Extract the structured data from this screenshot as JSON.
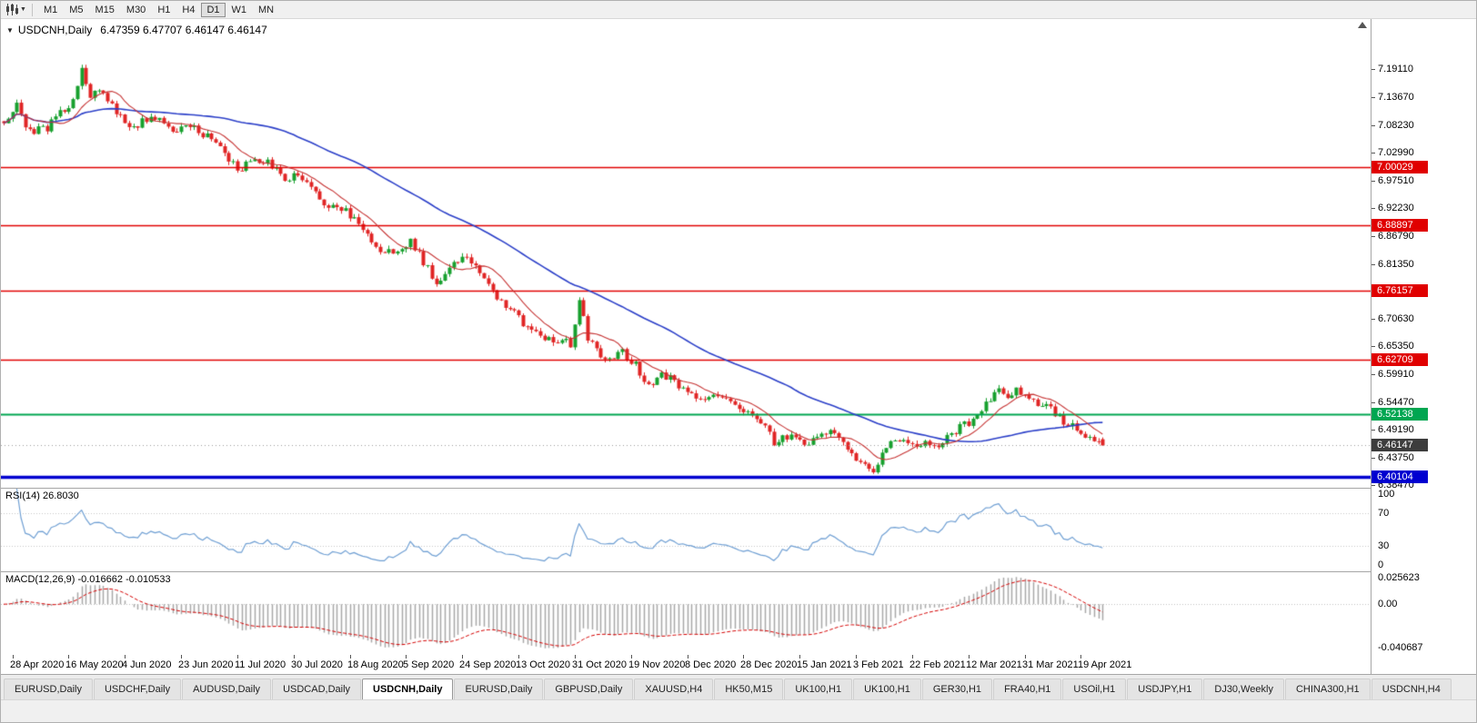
{
  "toolbar": {
    "timeframes": [
      {
        "label": "M1",
        "active": false
      },
      {
        "label": "M5",
        "active": false
      },
      {
        "label": "M15",
        "active": false
      },
      {
        "label": "M30",
        "active": false
      },
      {
        "label": "H1",
        "active": false
      },
      {
        "label": "H4",
        "active": false
      },
      {
        "label": "D1",
        "active": true
      },
      {
        "label": "W1",
        "active": false
      },
      {
        "label": "MN",
        "active": false
      }
    ]
  },
  "chart": {
    "info_prefix": "USDCNH,Daily",
    "info_ohlc": "6.47359 6.47707 6.46147 6.46147"
  },
  "price_axis": {
    "ticks": [
      "7.19110",
      "7.13670",
      "7.08230",
      "7.02990",
      "6.97510",
      "6.92230",
      "6.86790",
      "6.81350",
      "6.76070",
      "6.70630",
      "6.65350",
      "6.59910",
      "6.54470",
      "6.49190",
      "6.43750",
      "6.38470"
    ],
    "badges": [
      {
        "text": "7.00029",
        "price": 7.00029,
        "color": "#e00000"
      },
      {
        "text": "6.88897",
        "price": 6.88897,
        "color": "#e00000"
      },
      {
        "text": "6.76157",
        "price": 6.76157,
        "color": "#e00000"
      },
      {
        "text": "6.62709",
        "price": 6.62709,
        "color": "#e00000"
      },
      {
        "text": "6.52138",
        "price": 6.52138,
        "color": "#00a651"
      },
      {
        "text": "6.46147",
        "price": 6.46147,
        "color": "#3d3d3d"
      },
      {
        "text": "6.40104",
        "price": 6.40104,
        "color": "#0000d0"
      }
    ]
  },
  "rsi": {
    "label": "RSI(14) 26.8030",
    "value": "26.8030",
    "period": 14,
    "axis_labels": [
      "100",
      "70",
      "30",
      "0"
    ],
    "level_lines": [
      70,
      30
    ],
    "line_color": "#6f9fd3"
  },
  "macd": {
    "label": "MACD(12,26,9) -0.016662 -0.010533",
    "main_value": "-0.016662",
    "signal_value": "-0.010533",
    "fast": 12,
    "slow": 26,
    "signal": 9,
    "axis_top": "0.025623",
    "axis_zero": "0.00",
    "axis_bottom": "-0.040687",
    "bar_color": "#a8a8a8",
    "signal_color": "#d40000"
  },
  "time_axis": {
    "dates": [
      "28 Apr 2020",
      "16 May 2020",
      "4 Jun 2020",
      "23 Jun 2020",
      "11 Jul 2020",
      "30 Jul 2020",
      "18 Aug 2020",
      "5 Sep 2020",
      "24 Sep 2020",
      "13 Oct 2020",
      "31 Oct 2020",
      "19 Nov 2020",
      "8 Dec 2020",
      "28 Dec 2020",
      "15 Jan 2021",
      "3 Feb 2021",
      "22 Feb 2021",
      "12 Mar 2021",
      "31 Mar 2021",
      "19 Apr 2021"
    ],
    "first_label_candle": 2,
    "candles_per_label": 13
  },
  "tabs": [
    {
      "label": "EURUSD,Daily",
      "active": false
    },
    {
      "label": "USDCHF,Daily",
      "active": false
    },
    {
      "label": "AUDUSD,Daily",
      "active": false
    },
    {
      "label": "USDCAD,Daily",
      "active": false
    },
    {
      "label": "USDCNH,Daily",
      "active": true
    },
    {
      "label": "EURUSD,Daily",
      "active": false
    },
    {
      "label": "GBPUSD,Daily",
      "active": false
    },
    {
      "label": "XAUUSD,H4",
      "active": false
    },
    {
      "label": "HK50,M15",
      "active": false
    },
    {
      "label": "UK100,H1",
      "active": false
    },
    {
      "label": "UK100,H1",
      "active": false
    },
    {
      "label": "GER30,H1",
      "active": false
    },
    {
      "label": "FRA40,H1",
      "active": false
    },
    {
      "label": "USOil,H1",
      "active": false
    },
    {
      "label": "USDJPY,H1",
      "active": false
    },
    {
      "label": "DJ30,Weekly",
      "active": false
    },
    {
      "label": "CHINA300,H1",
      "active": false
    },
    {
      "label": "USDCNH,H4",
      "active": false
    }
  ],
  "chart_data": {
    "type": "candlestick",
    "symbol": "USDCNH",
    "period": "Daily",
    "title": "USDCNH,Daily",
    "num_candles": 255,
    "bar_spacing_px": 4.757,
    "seed": 42,
    "noise": 0.008,
    "wick": 0.007,
    "price_range": [
      6.3795,
      7.288
    ],
    "last_candle": [
      6.47359,
      6.47707,
      6.46147,
      6.46147
    ],
    "current_price": 6.46147,
    "up_color": "#17a02e",
    "down_color": "#e02525",
    "anchors": [
      [
        0,
        7.09
      ],
      [
        3,
        7.118
      ],
      [
        6,
        7.068
      ],
      [
        10,
        7.078
      ],
      [
        13,
        7.108
      ],
      [
        16,
        7.128
      ],
      [
        18,
        7.196
      ],
      [
        20,
        7.138
      ],
      [
        23,
        7.148
      ],
      [
        26,
        7.108
      ],
      [
        29,
        7.078
      ],
      [
        32,
        7.088
      ],
      [
        36,
        7.098
      ],
      [
        39,
        7.068
      ],
      [
        43,
        7.078
      ],
      [
        47,
        7.062
      ],
      [
        50,
        7.038
      ],
      [
        52,
        7.008
      ],
      [
        55,
        6.998
      ],
      [
        58,
        7.018
      ],
      [
        61,
        7.008
      ],
      [
        65,
        6.978
      ],
      [
        68,
        6.988
      ],
      [
        71,
        6.958
      ],
      [
        74,
        6.928
      ],
      [
        78,
        6.922
      ],
      [
        81,
        6.898
      ],
      [
        84,
        6.868
      ],
      [
        87,
        6.842
      ],
      [
        91,
        6.832
      ],
      [
        94,
        6.858
      ],
      [
        97,
        6.818
      ],
      [
        100,
        6.778
      ],
      [
        102,
        6.798
      ],
      [
        104,
        6.818
      ],
      [
        107,
        6.828
      ],
      [
        110,
        6.798
      ],
      [
        113,
        6.758
      ],
      [
        117,
        6.728
      ],
      [
        120,
        6.698
      ],
      [
        123,
        6.682
      ],
      [
        127,
        6.658
      ],
      [
        130,
        6.662
      ],
      [
        131,
        6.655
      ],
      [
        133,
        6.748
      ],
      [
        135,
        6.672
      ],
      [
        137,
        6.642
      ],
      [
        140,
        6.626
      ],
      [
        143,
        6.642
      ],
      [
        146,
        6.616
      ],
      [
        149,
        6.578
      ],
      [
        152,
        6.602
      ],
      [
        156,
        6.578
      ],
      [
        159,
        6.556
      ],
      [
        162,
        6.546
      ],
      [
        165,
        6.562
      ],
      [
        169,
        6.542
      ],
      [
        172,
        6.526
      ],
      [
        175,
        6.512
      ],
      [
        178,
        6.466
      ],
      [
        180,
        6.482
      ],
      [
        182,
        6.476
      ],
      [
        185,
        6.462
      ],
      [
        188,
        6.476
      ],
      [
        191,
        6.486
      ],
      [
        194,
        6.472
      ],
      [
        196,
        6.446
      ],
      [
        199,
        6.422
      ],
      [
        201,
        6.412
      ],
      [
        204,
        6.456
      ],
      [
        206,
        6.476
      ],
      [
        208,
        6.466
      ],
      [
        211,
        6.456
      ],
      [
        213,
        6.47
      ],
      [
        216,
        6.462
      ],
      [
        219,
        6.482
      ],
      [
        221,
        6.496
      ],
      [
        224,
        6.512
      ],
      [
        227,
        6.546
      ],
      [
        230,
        6.566
      ],
      [
        232,
        6.556
      ],
      [
        234,
        6.57
      ],
      [
        236,
        6.556
      ],
      [
        239,
        6.542
      ],
      [
        241,
        6.546
      ],
      [
        243,
        6.522
      ],
      [
        245,
        6.506
      ],
      [
        248,
        6.492
      ],
      [
        251,
        6.478
      ],
      [
        254,
        6.46147
      ]
    ],
    "moving_averages": [
      {
        "type": "sma",
        "period": 50,
        "color": "#2b3fc8",
        "width": 1.6
      },
      {
        "type": "sma",
        "period": 10,
        "color": "#c63434",
        "width": 1.1
      }
    ],
    "horizontal_lines": [
      {
        "price": 7.00029,
        "color": "#e00000",
        "width": 1.6
      },
      {
        "price": 6.88897,
        "color": "#e00000",
        "width": 1.6
      },
      {
        "price": 6.76157,
        "color": "#e00000",
        "width": 1.6
      },
      {
        "price": 6.62709,
        "color": "#e00000",
        "width": 1.6
      },
      {
        "price": 6.52138,
        "color": "#00a651",
        "width": 2.2
      },
      {
        "price": 6.40104,
        "color": "#0000d0",
        "width": 3.5
      }
    ]
  }
}
